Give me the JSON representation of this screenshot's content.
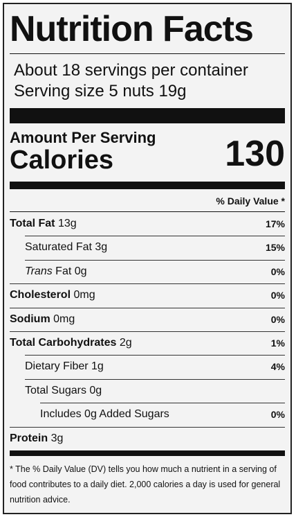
{
  "header": {
    "title": "Nutrition Facts",
    "servings": "About 18 servings per container",
    "serving_size": "Serving size 5 nuts 19g"
  },
  "calories": {
    "amount_per_serving": "Amount Per Serving",
    "label": "Calories",
    "value": "130"
  },
  "daily_value_header": "% Daily Value *",
  "rows": [
    {
      "name": "Total Fat",
      "amount": "13g",
      "dv": "17%"
    },
    {
      "name": "Saturated Fat",
      "amount": "3g",
      "dv": "15%"
    },
    {
      "name_italic": "Trans",
      "name": "Fat",
      "amount": "0g",
      "dv": "0%"
    },
    {
      "name": "Cholesterol",
      "amount": "0mg",
      "dv": "0%"
    },
    {
      "name": "Sodium",
      "amount": "0mg",
      "dv": "0%"
    },
    {
      "name": "Total Carbohydrates",
      "amount": "2g",
      "dv": "1%"
    },
    {
      "name": "Dietary Fiber",
      "amount": "1g",
      "dv": "4%"
    },
    {
      "name": "Total Sugars",
      "amount": "0g"
    },
    {
      "name": "Includes 0g Added Sugars",
      "dv": "0%"
    },
    {
      "name": "Protein",
      "amount": "3g"
    }
  ],
  "footnote": "* The % Daily Value (DV) tells you how much a nutrient in a serving of food contributes to a daily diet. 2,000 calories a day is used for general nutrition advice."
}
